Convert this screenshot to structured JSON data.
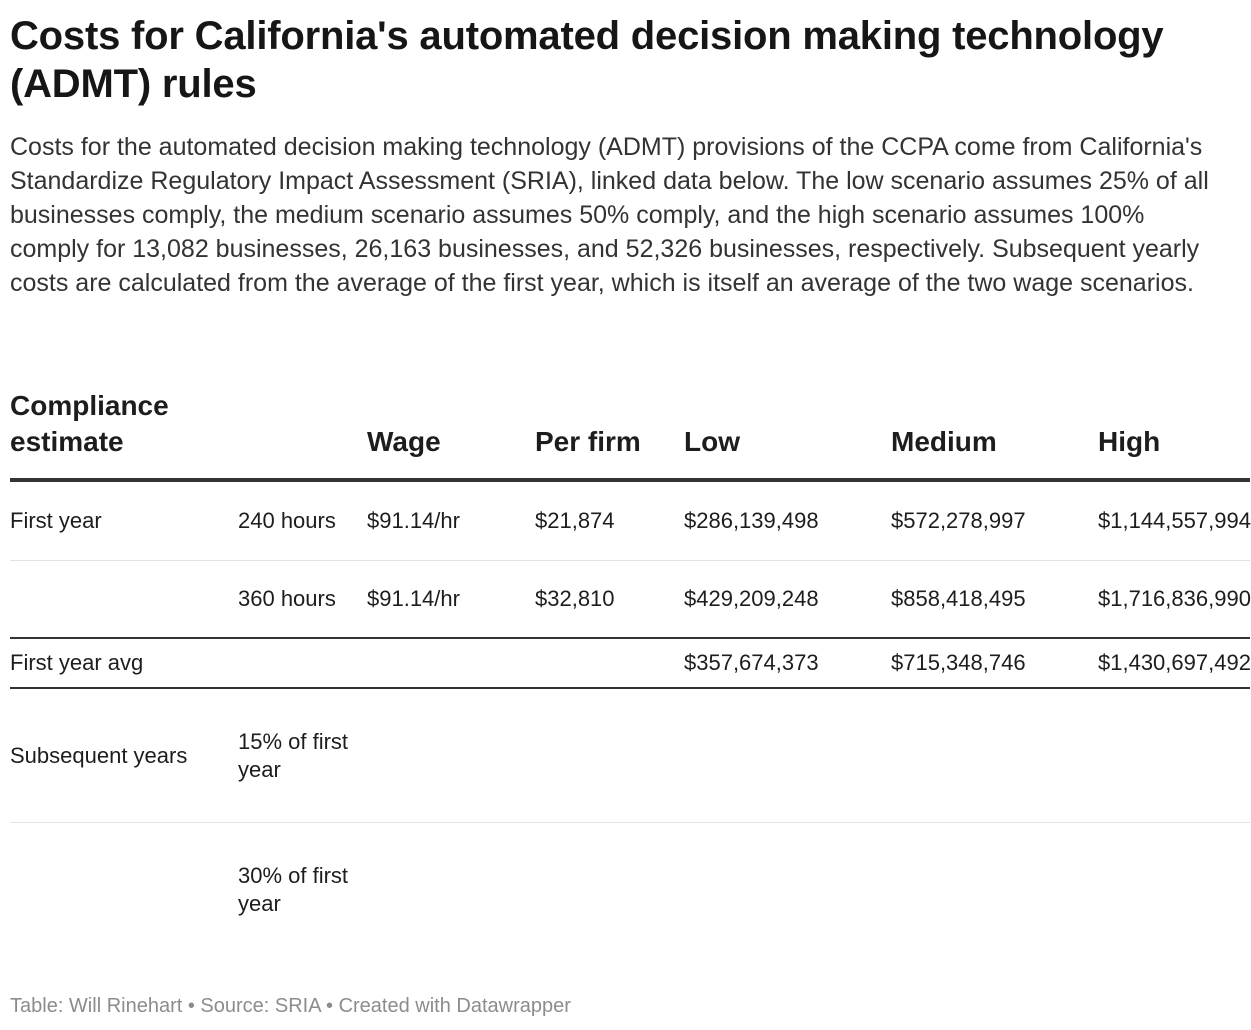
{
  "title": "Costs for California's automated decision making technology (ADMT) rules",
  "description": "Costs for the automated decision making technology (ADMT) provisions of the CCPA come from California's Standardize Regulatory Impact Assessment (SRIA), linked data below. The low scenario assumes 25% of all businesses comply, the medium scenario assumes 50% comply, and the high scenario assumes 100% comply for 13,082 businesses, 26,163 businesses, and 52,326 businesses, respectively. Subsequent yearly costs are calculated from the average of the first year, which is itself an average of the two wage scenarios.",
  "table": {
    "headers": [
      "Compliance estimate",
      "",
      "Wage",
      "Per firm",
      "Low",
      "Medium",
      "High"
    ],
    "rows": [
      [
        "First year",
        "240 hours",
        "$91.14/hr",
        "$21,874",
        "$286,139,498",
        "$572,278,997",
        "$1,144,557,994"
      ],
      [
        "",
        "360 hours",
        "$91.14/hr",
        "$32,810",
        "$429,209,248",
        "$858,418,495",
        "$1,716,836,990"
      ],
      [
        "First year avg",
        "",
        "",
        "",
        "$357,674,373",
        "$715,348,746",
        "$1,430,697,492"
      ],
      [
        "Subsequent years",
        "15% of first year",
        "",
        "",
        "",
        "",
        ""
      ],
      [
        "",
        "30% of first year",
        "",
        "",
        "",
        "",
        ""
      ]
    ]
  },
  "footer": "Table: Will Rinehart • Source: SRIA • Created with Datawrapper"
}
